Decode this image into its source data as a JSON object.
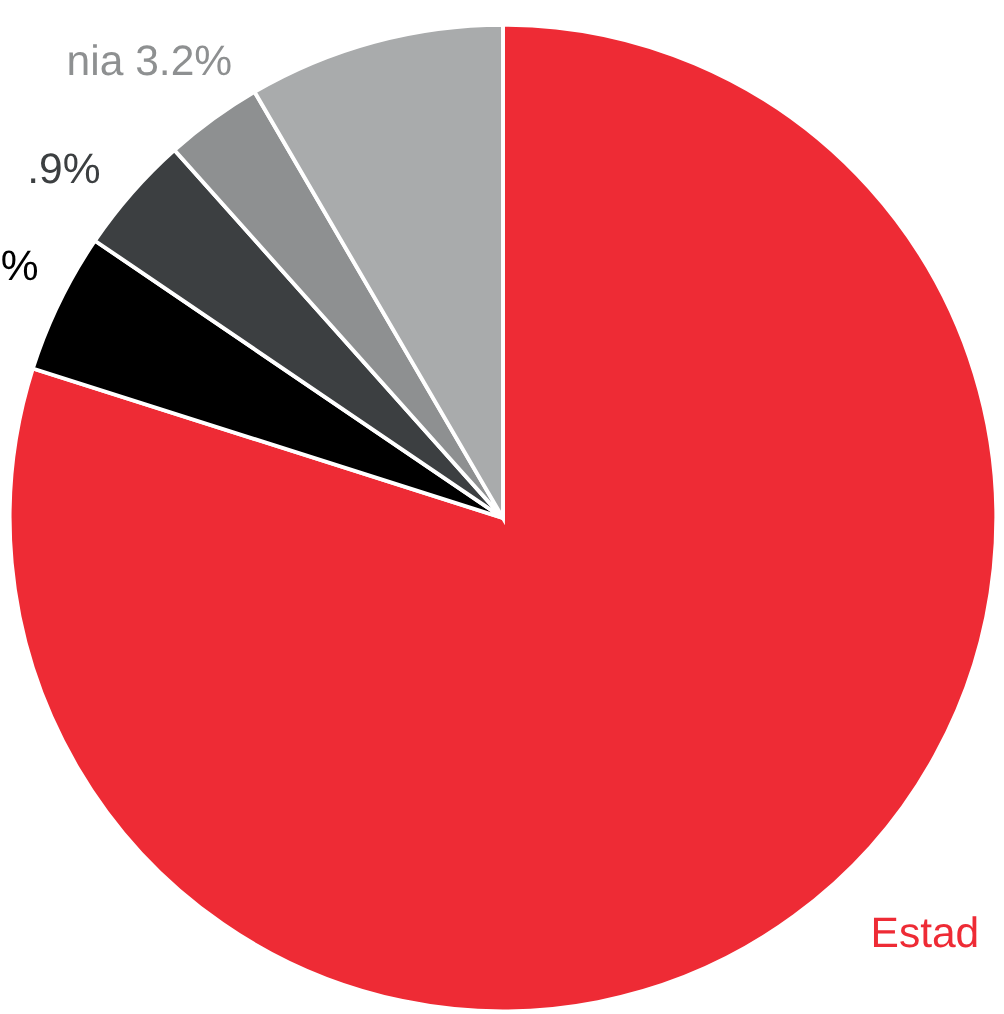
{
  "chart_data": {
    "type": "pie",
    "categories": [
      "Estad",
      "%",
      ".9%",
      "nia 3.2%",
      null
    ],
    "values": [
      79.9,
      4.6,
      3.9,
      3.2,
      8.4
    ],
    "colors": [
      "#ee2b35",
      "#000000",
      "#3c3f41",
      "#8e9091",
      "#a9abac"
    ],
    "legend": false
  }
}
